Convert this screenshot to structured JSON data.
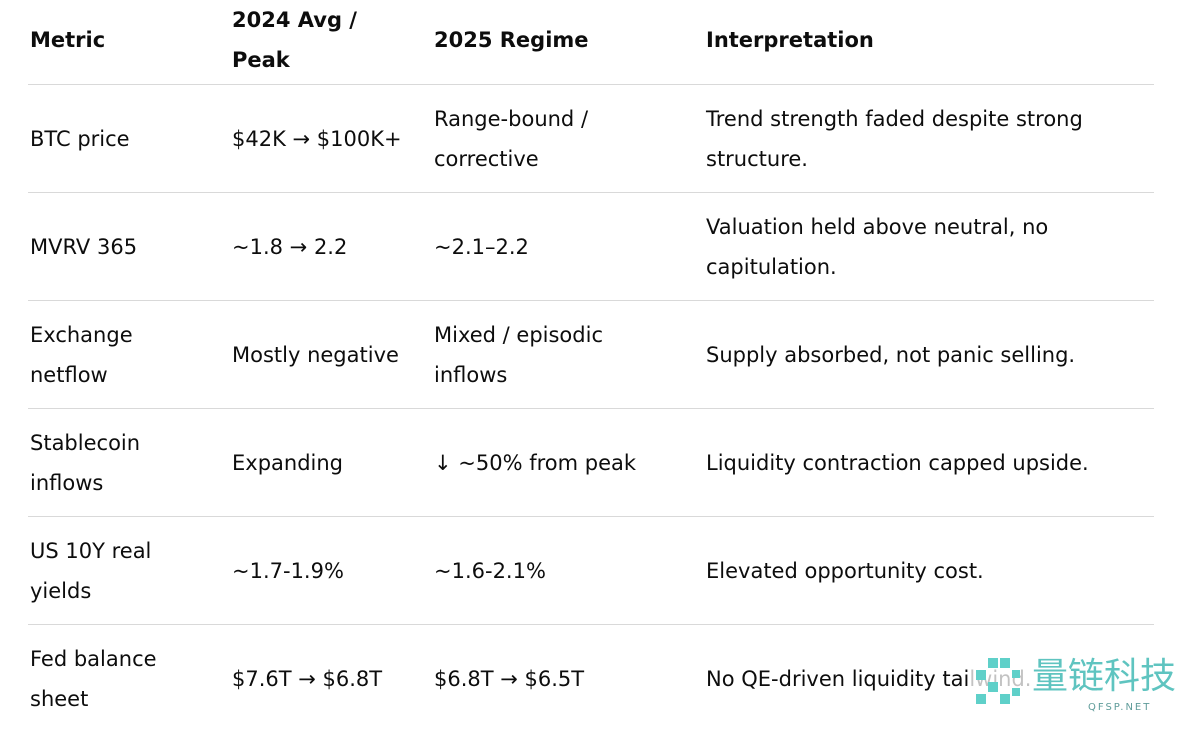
{
  "table": {
    "header": [
      "Metric",
      "2024 Avg / Peak",
      "2025 Regime",
      "Interpretation"
    ],
    "rows": [
      [
        "BTC price",
        "$42K → $100K+",
        "Range-bound / corrective",
        "Trend strength faded despite strong structure."
      ],
      [
        "MVRV 365",
        "~1.8 → 2.2",
        "~2.1–2.2",
        "Valuation held above neutral, no capitulation."
      ],
      [
        "Exchange netflow",
        "Mostly negative",
        "Mixed / episodic inflows",
        "Supply absorbed, not panic selling."
      ],
      [
        "Stablecoin inflows",
        "Expanding",
        "↓ ~50% from peak",
        "Liquidity contraction capped upside."
      ],
      [
        "US 10Y real yields",
        "~1.7-1.9%",
        "~1.6-2.1%",
        "Elevated opportunity cost."
      ],
      [
        "Fed balance sheet",
        "$7.6T → $6.8T",
        "$6.8T → $6.5T",
        "No QE-driven liquidity tailwind."
      ]
    ]
  },
  "watermark": {
    "title": "量链科技",
    "subtitle": "QFSP.NET"
  }
}
